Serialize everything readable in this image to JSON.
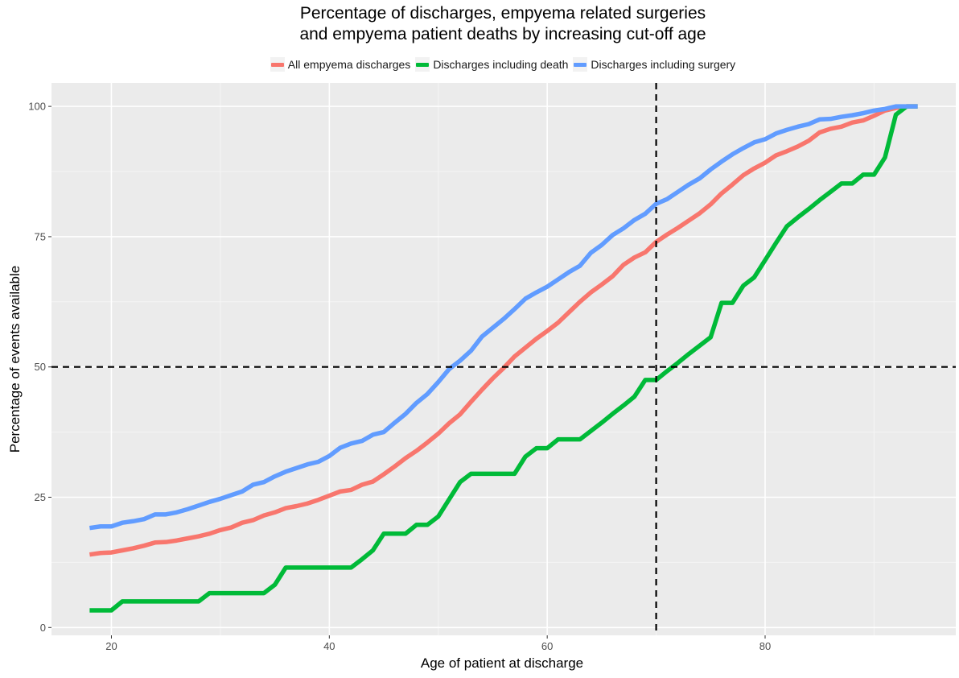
{
  "chart_data": {
    "type": "line",
    "title_line1": "Percentage of discharges, empyema related surgeries",
    "title_line2": "and empyema patient deaths by increasing cut-off age",
    "xlabel": "Age of patient at discharge",
    "ylabel": "Percentage of events available",
    "xlim": [
      14.5,
      97.5
    ],
    "ylim": [
      -1.5,
      104.5
    ],
    "x_ticks": [
      20,
      40,
      60,
      80
    ],
    "y_ticks": [
      0,
      25,
      50,
      75,
      100
    ],
    "x_tick_labels": [
      "20",
      "40",
      "60",
      "80"
    ],
    "y_tick_labels": [
      "0",
      "25",
      "50",
      "75",
      "100"
    ],
    "grid": true,
    "legend_position": "top",
    "reference_lines": {
      "vertical_x": 70,
      "horizontal_y": 50
    },
    "series": [
      {
        "name": "All empyema discharges",
        "color": "#F8766D",
        "points": [
          [
            18,
            14
          ],
          [
            19,
            14.3
          ],
          [
            20,
            14.4
          ],
          [
            21,
            14.8
          ],
          [
            22,
            15.2
          ],
          [
            23,
            15.7
          ],
          [
            24,
            16.3
          ],
          [
            25,
            16.4
          ],
          [
            26,
            16.7
          ],
          [
            27,
            17.1
          ],
          [
            28,
            17.5
          ],
          [
            29,
            18
          ],
          [
            30,
            18.7
          ],
          [
            31,
            19.2
          ],
          [
            32,
            20.1
          ],
          [
            33,
            20.6
          ],
          [
            34,
            21.5
          ],
          [
            35,
            22.1
          ],
          [
            36,
            22.9
          ],
          [
            37,
            23.3
          ],
          [
            38,
            23.8
          ],
          [
            39,
            24.5
          ],
          [
            40,
            25.3
          ],
          [
            41,
            26.1
          ],
          [
            42,
            26.4
          ],
          [
            43,
            27.4
          ],
          [
            44,
            28
          ],
          [
            45,
            29.4
          ],
          [
            46,
            30.9
          ],
          [
            47,
            32.5
          ],
          [
            48,
            33.9
          ],
          [
            49,
            35.5
          ],
          [
            50,
            37.2
          ],
          [
            51,
            39.2
          ],
          [
            52,
            40.9
          ],
          [
            53,
            43.3
          ],
          [
            54,
            45.6
          ],
          [
            55,
            47.8
          ],
          [
            56,
            49.8
          ],
          [
            57,
            52
          ],
          [
            58,
            53.7
          ],
          [
            59,
            55.4
          ],
          [
            60,
            56.9
          ],
          [
            61,
            58.5
          ],
          [
            62,
            60.5
          ],
          [
            63,
            62.5
          ],
          [
            64,
            64.3
          ],
          [
            65,
            65.8
          ],
          [
            66,
            67.4
          ],
          [
            67,
            69.6
          ],
          [
            68,
            71
          ],
          [
            69,
            72
          ],
          [
            70,
            74
          ],
          [
            71,
            75.4
          ],
          [
            72,
            76.7
          ],
          [
            73,
            78.1
          ],
          [
            74,
            79.5
          ],
          [
            75,
            81.2
          ],
          [
            76,
            83.3
          ],
          [
            77,
            85
          ],
          [
            78,
            86.8
          ],
          [
            79,
            88.1
          ],
          [
            80,
            89.2
          ],
          [
            81,
            90.6
          ],
          [
            82,
            91.4
          ],
          [
            83,
            92.3
          ],
          [
            84,
            93.4
          ],
          [
            85,
            95
          ],
          [
            86,
            95.7
          ],
          [
            87,
            96.1
          ],
          [
            88,
            96.9
          ],
          [
            89,
            97.3
          ],
          [
            90,
            98.2
          ],
          [
            91,
            99.2
          ],
          [
            92,
            99.7
          ],
          [
            93,
            100
          ],
          [
            94,
            100
          ]
        ]
      },
      {
        "name": "Discharges including death",
        "color": "#00BA38",
        "points": [
          [
            18,
            3.3
          ],
          [
            20,
            3.3
          ],
          [
            21,
            5
          ],
          [
            28,
            5
          ],
          [
            29,
            6.6
          ],
          [
            34,
            6.6
          ],
          [
            35,
            8.2
          ],
          [
            36,
            11.5
          ],
          [
            42,
            11.5
          ],
          [
            43,
            13.1
          ],
          [
            44,
            14.8
          ],
          [
            45,
            18
          ],
          [
            47,
            18
          ],
          [
            48,
            19.7
          ],
          [
            49,
            19.7
          ],
          [
            50,
            21.3
          ],
          [
            51,
            24.6
          ],
          [
            52,
            27.9
          ],
          [
            53,
            29.5
          ],
          [
            57,
            29.5
          ],
          [
            58,
            32.8
          ],
          [
            59,
            34.4
          ],
          [
            60,
            34.4
          ],
          [
            61,
            36.1
          ],
          [
            63,
            36.1
          ],
          [
            64,
            37.7
          ],
          [
            65,
            39.3
          ],
          [
            66,
            41
          ],
          [
            67,
            42.6
          ],
          [
            68,
            44.3
          ],
          [
            69,
            47.5
          ],
          [
            70,
            47.5
          ],
          [
            71,
            49.2
          ],
          [
            72,
            50.8
          ],
          [
            73,
            52.5
          ],
          [
            74,
            54.1
          ],
          [
            75,
            55.7
          ],
          [
            76,
            62.3
          ],
          [
            77,
            62.3
          ],
          [
            78,
            65.6
          ],
          [
            79,
            67.2
          ],
          [
            80,
            70.5
          ],
          [
            81,
            73.8
          ],
          [
            82,
            77
          ],
          [
            83,
            78.7
          ],
          [
            84,
            80.3
          ],
          [
            85,
            82
          ],
          [
            86,
            83.6
          ],
          [
            87,
            85.2
          ],
          [
            88,
            85.2
          ],
          [
            89,
            86.9
          ],
          [
            90,
            86.9
          ],
          [
            91,
            90.2
          ],
          [
            92,
            98.4
          ],
          [
            93,
            100
          ],
          [
            94,
            100
          ]
        ]
      },
      {
        "name": "Discharges including surgery",
        "color": "#619CFF",
        "points": [
          [
            18,
            19.1
          ],
          [
            19,
            19.4
          ],
          [
            20,
            19.4
          ],
          [
            21,
            20.1
          ],
          [
            22,
            20.4
          ],
          [
            23,
            20.8
          ],
          [
            24,
            21.7
          ],
          [
            25,
            21.7
          ],
          [
            26,
            22.1
          ],
          [
            27,
            22.7
          ],
          [
            28,
            23.4
          ],
          [
            29,
            24.1
          ],
          [
            30,
            24.7
          ],
          [
            31,
            25.4
          ],
          [
            32,
            26.1
          ],
          [
            33,
            27.4
          ],
          [
            34,
            27.9
          ],
          [
            35,
            29
          ],
          [
            36,
            29.9
          ],
          [
            37,
            30.6
          ],
          [
            38,
            31.3
          ],
          [
            39,
            31.8
          ],
          [
            40,
            32.9
          ],
          [
            41,
            34.5
          ],
          [
            42,
            35.3
          ],
          [
            43,
            35.8
          ],
          [
            44,
            37
          ],
          [
            45,
            37.5
          ],
          [
            46,
            39.3
          ],
          [
            47,
            41
          ],
          [
            48,
            43.1
          ],
          [
            49,
            44.8
          ],
          [
            50,
            47.1
          ],
          [
            51,
            49.6
          ],
          [
            52,
            51.2
          ],
          [
            53,
            53.1
          ],
          [
            54,
            55.8
          ],
          [
            55,
            57.5
          ],
          [
            56,
            59.2
          ],
          [
            57,
            61.1
          ],
          [
            58,
            63.1
          ],
          [
            59,
            64.3
          ],
          [
            60,
            65.4
          ],
          [
            61,
            66.8
          ],
          [
            62,
            68.2
          ],
          [
            63,
            69.4
          ],
          [
            64,
            71.9
          ],
          [
            65,
            73.4
          ],
          [
            66,
            75.3
          ],
          [
            67,
            76.6
          ],
          [
            68,
            78.2
          ],
          [
            69,
            79.4
          ],
          [
            70,
            81.3
          ],
          [
            71,
            82.2
          ],
          [
            72,
            83.6
          ],
          [
            73,
            85
          ],
          [
            74,
            86.2
          ],
          [
            75,
            87.9
          ],
          [
            76,
            89.4
          ],
          [
            77,
            90.8
          ],
          [
            78,
            92
          ],
          [
            79,
            93.1
          ],
          [
            80,
            93.7
          ],
          [
            81,
            94.8
          ],
          [
            82,
            95.5
          ],
          [
            83,
            96.1
          ],
          [
            84,
            96.6
          ],
          [
            85,
            97.5
          ],
          [
            86,
            97.6
          ],
          [
            87,
            98
          ],
          [
            88,
            98.3
          ],
          [
            89,
            98.7
          ],
          [
            90,
            99.2
          ],
          [
            91,
            99.5
          ],
          [
            92,
            100
          ],
          [
            93,
            100
          ],
          [
            94,
            100
          ]
        ]
      }
    ]
  }
}
